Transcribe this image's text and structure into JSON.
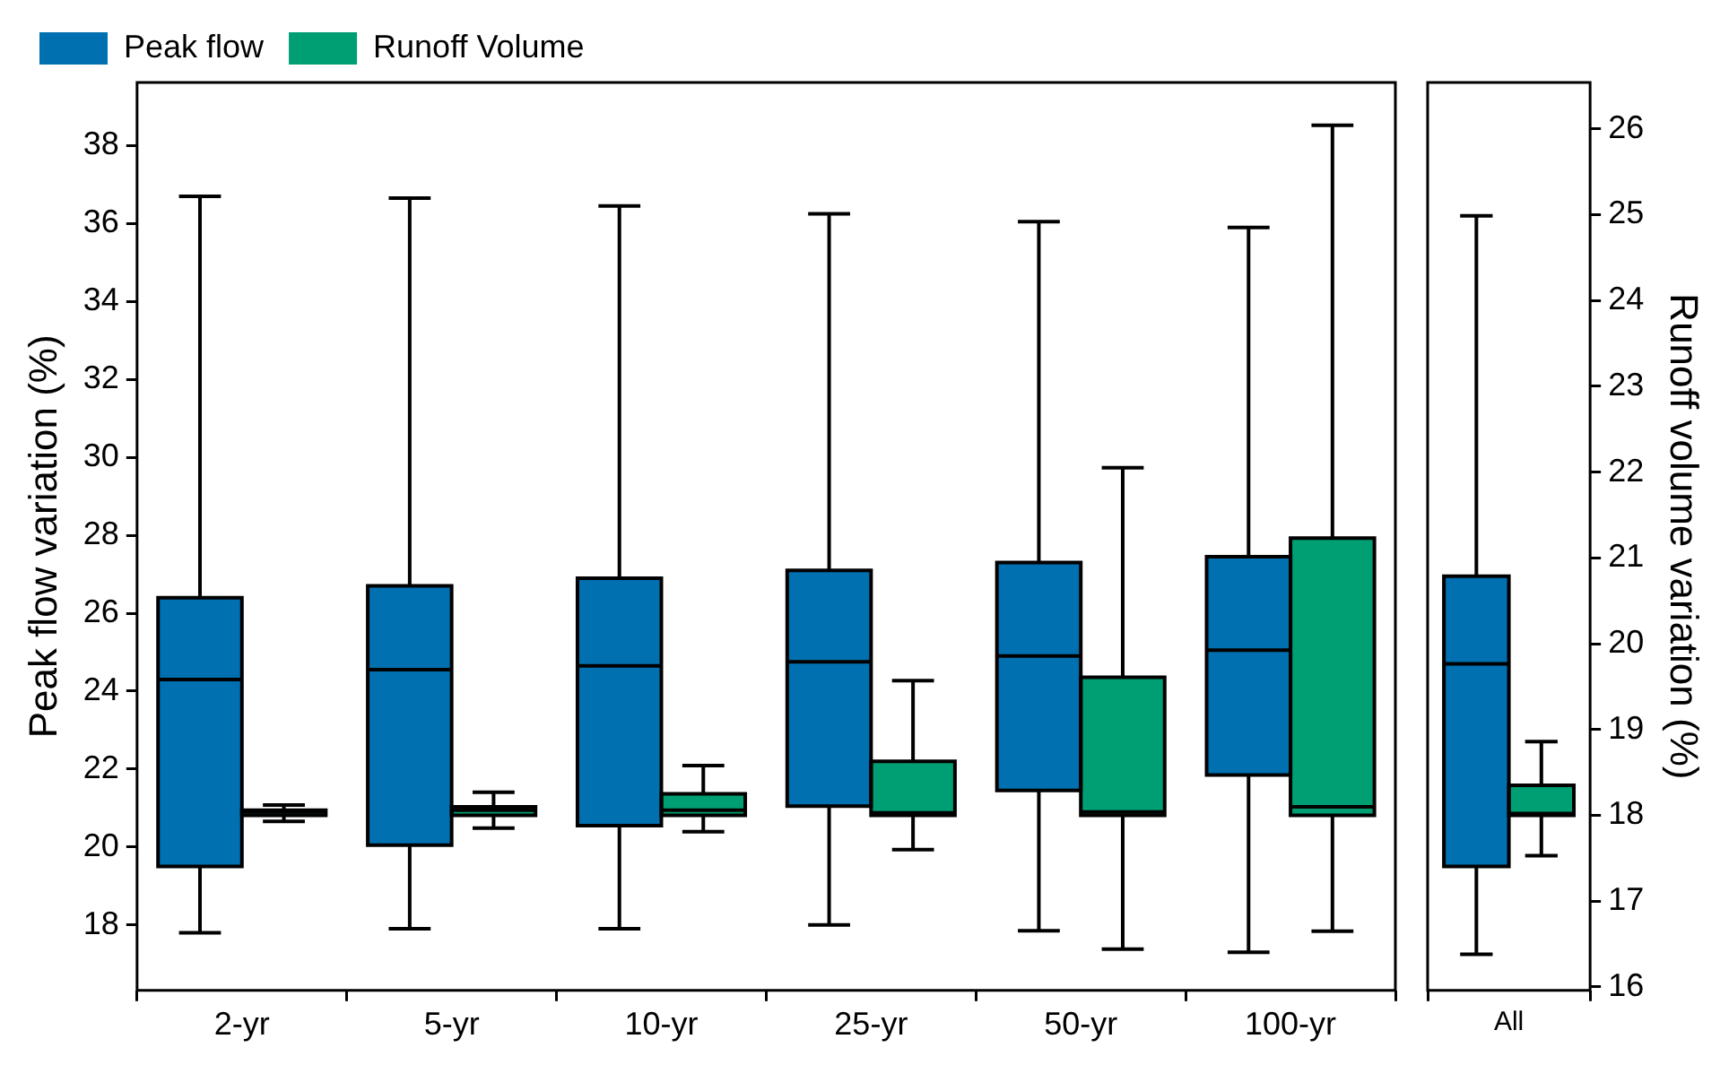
{
  "chart_data": [
    {
      "type": "box",
      "categories": [
        "2-yr",
        "5-yr",
        "10-yr",
        "25-yr",
        "50-yr",
        "100-yr"
      ],
      "ylabel": "Peak flow variation (%)",
      "ylim": [
        16.32,
        39.62
      ],
      "yticks": [
        18,
        20,
        22,
        24,
        26,
        28,
        30,
        32,
        34,
        36,
        38
      ],
      "y2lim": [
        15.96,
        26.54
      ],
      "legend": "top left",
      "tick_labels": "xy",
      "series": [
        {
          "name": "Peak flow",
          "color": "#0070b0",
          "boxes": [
            {
              "low": 17.8,
              "q1": 19.5,
              "median": 24.3,
              "q3": 26.4,
              "high": 36.7
            },
            {
              "low": 17.9,
              "q1": 20.05,
              "median": 24.55,
              "q3": 26.7,
              "high": 36.65
            },
            {
              "low": 17.9,
              "q1": 20.55,
              "median": 24.65,
              "q3": 26.9,
              "high": 36.45
            },
            {
              "low": 18.0,
              "q1": 21.05,
              "median": 24.75,
              "q3": 27.1,
              "high": 36.25
            },
            {
              "low": 17.85,
              "q1": 21.45,
              "median": 24.9,
              "q3": 27.3,
              "high": 36.05
            },
            {
              "low": 17.3,
              "q1": 21.85,
              "median": 25.05,
              "q3": 27.45,
              "high": 35.9
            }
          ]
        },
        {
          "name": "Runoff Volume",
          "color": "#009e73",
          "axis": "y2",
          "boxes": [
            {
              "low": 17.93,
              "q1": 18.0,
              "median": 18.04,
              "q3": 18.06,
              "high": 18.12
            },
            {
              "low": 17.85,
              "q1": 18.0,
              "median": 18.06,
              "q3": 18.1,
              "high": 18.27
            },
            {
              "low": 17.81,
              "q1": 18.0,
              "median": 18.06,
              "q3": 18.25,
              "high": 18.58
            },
            {
              "low": 17.6,
              "q1": 18.0,
              "median": 18.03,
              "q3": 18.63,
              "high": 19.57
            },
            {
              "low": 16.44,
              "q1": 18.0,
              "median": 18.04,
              "q3": 19.61,
              "high": 22.05
            },
            {
              "low": 16.65,
              "q1": 18.0,
              "median": 18.1,
              "q3": 21.23,
              "high": 26.04
            }
          ]
        }
      ]
    },
    {
      "type": "box",
      "categories": [
        "All"
      ],
      "y2label": "Runoff volume variation (%)",
      "ylim": [
        16.32,
        39.62
      ],
      "y2lim": [
        15.96,
        26.54
      ],
      "y2ticks": [
        16,
        17,
        18,
        19,
        20,
        21,
        22,
        23,
        24,
        25,
        26
      ],
      "tick_labels": "xy2",
      "series": [
        {
          "color": "#0070b0",
          "boxes": [
            {
              "low": 17.25,
              "q1": 19.5,
              "median": 24.7,
              "q3": 26.95,
              "high": 36.2
            }
          ]
        },
        {
          "color": "#009e73",
          "axis": "y2",
          "boxes": [
            {
              "low": 17.53,
              "q1": 18.0,
              "median": 18.02,
              "q3": 18.35,
              "high": 18.86
            }
          ]
        }
      ]
    }
  ]
}
